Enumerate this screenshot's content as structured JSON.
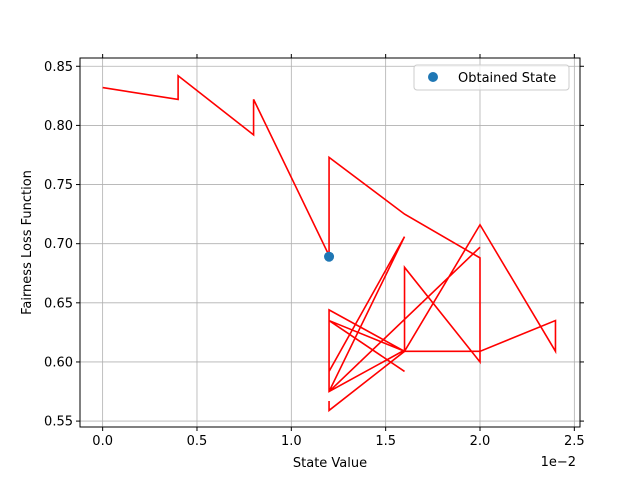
{
  "chart_data": {
    "type": "line",
    "xlabel": "State Value",
    "ylabel": "Fairness Loss Function",
    "x_offset_label": "1e−2",
    "x_scale_factor": 100,
    "xlim": [
      -0.0012,
      0.0253
    ],
    "ylim": [
      0.545,
      0.857
    ],
    "x_ticks": [
      0,
      0.005,
      0.01,
      0.015,
      0.02,
      0.025
    ],
    "x_tick_labels": [
      "0.0",
      "0.5",
      "1.0",
      "1.5",
      "2.0",
      "2.5"
    ],
    "y_ticks": [
      0.55,
      0.6,
      0.65,
      0.7,
      0.75,
      0.8,
      0.85
    ],
    "y_tick_labels": [
      "0.55",
      "0.60",
      "0.65",
      "0.70",
      "0.75",
      "0.80",
      "0.85"
    ],
    "grid": true,
    "legend_position": "top-right",
    "series": [
      {
        "kind": "line",
        "color": "#ff0000",
        "points": [
          [
            0.0,
            0.832
          ],
          [
            0.004,
            0.822
          ],
          [
            0.004,
            0.842
          ],
          [
            0.008,
            0.792
          ],
          [
            0.008,
            0.822
          ],
          [
            0.012,
            0.69
          ],
          [
            0.012,
            0.773
          ],
          [
            0.016,
            0.725
          ],
          [
            0.02,
            0.688
          ],
          [
            0.02,
            0.6
          ],
          [
            0.016,
            0.68
          ],
          [
            0.016,
            0.61
          ],
          [
            0.012,
            0.575
          ],
          [
            0.012,
            0.644
          ],
          [
            0.016,
            0.609
          ],
          [
            0.02,
            0.716
          ],
          [
            0.024,
            0.609
          ],
          [
            0.024,
            0.635
          ],
          [
            0.02,
            0.609
          ],
          [
            0.016,
            0.609
          ],
          [
            0.012,
            0.559
          ],
          [
            0.012,
            0.567
          ],
          [
            0.012,
            0.559
          ],
          [
            0.016,
            0.609
          ],
          [
            0.012,
            0.635
          ],
          [
            0.016,
            0.592
          ],
          [
            0.012,
            0.635
          ],
          [
            0.012,
            0.592
          ],
          [
            0.016,
            0.706
          ],
          [
            0.012,
            0.575
          ],
          [
            0.02,
            0.697
          ]
        ]
      },
      {
        "kind": "scatter",
        "name": "Obtained State",
        "color": "#1f77b4",
        "points": [
          [
            0.012,
            0.689
          ]
        ]
      }
    ]
  }
}
